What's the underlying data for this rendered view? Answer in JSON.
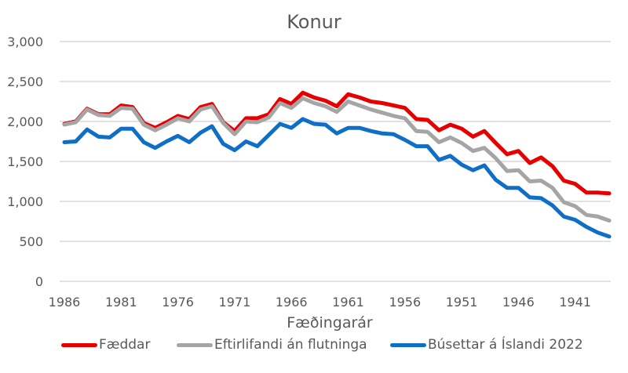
{
  "chart_data": {
    "type": "line",
    "title": "Konur",
    "xlabel": "Fæðingarár",
    "ylabel": "",
    "ylim": [
      0,
      3000
    ],
    "yticks": [
      "0",
      "500",
      "1,000",
      "1,500",
      "2,000",
      "2,500",
      "3,000"
    ],
    "ytick_values": [
      0,
      500,
      1000,
      1500,
      2000,
      2500,
      3000
    ],
    "xtick_labels": [
      "1986",
      "1981",
      "1976",
      "1971",
      "1966",
      "1961",
      "1956",
      "1951",
      "1946",
      "1941"
    ],
    "grid": true,
    "legend_position": "bottom",
    "x": [
      1986,
      1985,
      1984,
      1983,
      1982,
      1981,
      1980,
      1979,
      1978,
      1977,
      1976,
      1975,
      1974,
      1973,
      1972,
      1971,
      1970,
      1969,
      1968,
      1967,
      1966,
      1965,
      1964,
      1963,
      1962,
      1961,
      1960,
      1959,
      1958,
      1957,
      1956,
      1955,
      1954,
      1953,
      1952,
      1951,
      1950,
      1949,
      1948,
      1947,
      1946,
      1945,
      1944,
      1943,
      1942,
      1941,
      1940,
      1939,
      1938
    ],
    "series": [
      {
        "name": "Fæddar",
        "color": "#e60000",
        "values": [
          1970,
          2000,
          2160,
          2090,
          2090,
          2200,
          2180,
          1980,
          1920,
          1990,
          2070,
          2030,
          2180,
          2220,
          1990,
          1880,
          2040,
          2040,
          2090,
          2280,
          2220,
          2360,
          2300,
          2260,
          2190,
          2340,
          2300,
          2250,
          2230,
          2200,
          2170,
          2030,
          2020,
          1890,
          1960,
          1910,
          1810,
          1880,
          1730,
          1590,
          1630,
          1480,
          1550,
          1440,
          1260,
          1220,
          1110,
          1110,
          1100
        ]
      },
      {
        "name": "Eftirlifandi án flutninga",
        "color": "#a5a5a5",
        "values": [
          1960,
          1990,
          2150,
          2080,
          2070,
          2170,
          2160,
          1960,
          1890,
          1960,
          2040,
          2000,
          2150,
          2190,
          1980,
          1840,
          2000,
          1990,
          2050,
          2230,
          2170,
          2290,
          2230,
          2190,
          2120,
          2250,
          2200,
          2150,
          2110,
          2070,
          2040,
          1880,
          1870,
          1740,
          1800,
          1730,
          1630,
          1670,
          1540,
          1380,
          1390,
          1250,
          1260,
          1170,
          990,
          940,
          830,
          810,
          760
        ]
      },
      {
        "name": "Búsettar á Íslandi 2022",
        "color": "#0f6fc6",
        "values": [
          1740,
          1750,
          1900,
          1810,
          1800,
          1910,
          1910,
          1740,
          1670,
          1750,
          1820,
          1740,
          1860,
          1940,
          1720,
          1640,
          1750,
          1690,
          1830,
          1970,
          1920,
          2030,
          1970,
          1960,
          1850,
          1920,
          1920,
          1880,
          1850,
          1840,
          1770,
          1690,
          1690,
          1520,
          1570,
          1460,
          1390,
          1450,
          1270,
          1170,
          1170,
          1050,
          1040,
          950,
          810,
          770,
          680,
          610,
          560
        ]
      }
    ]
  },
  "colors": {
    "gridline": "#d9d9d9",
    "text": "#595959",
    "background": "#ffffff"
  }
}
